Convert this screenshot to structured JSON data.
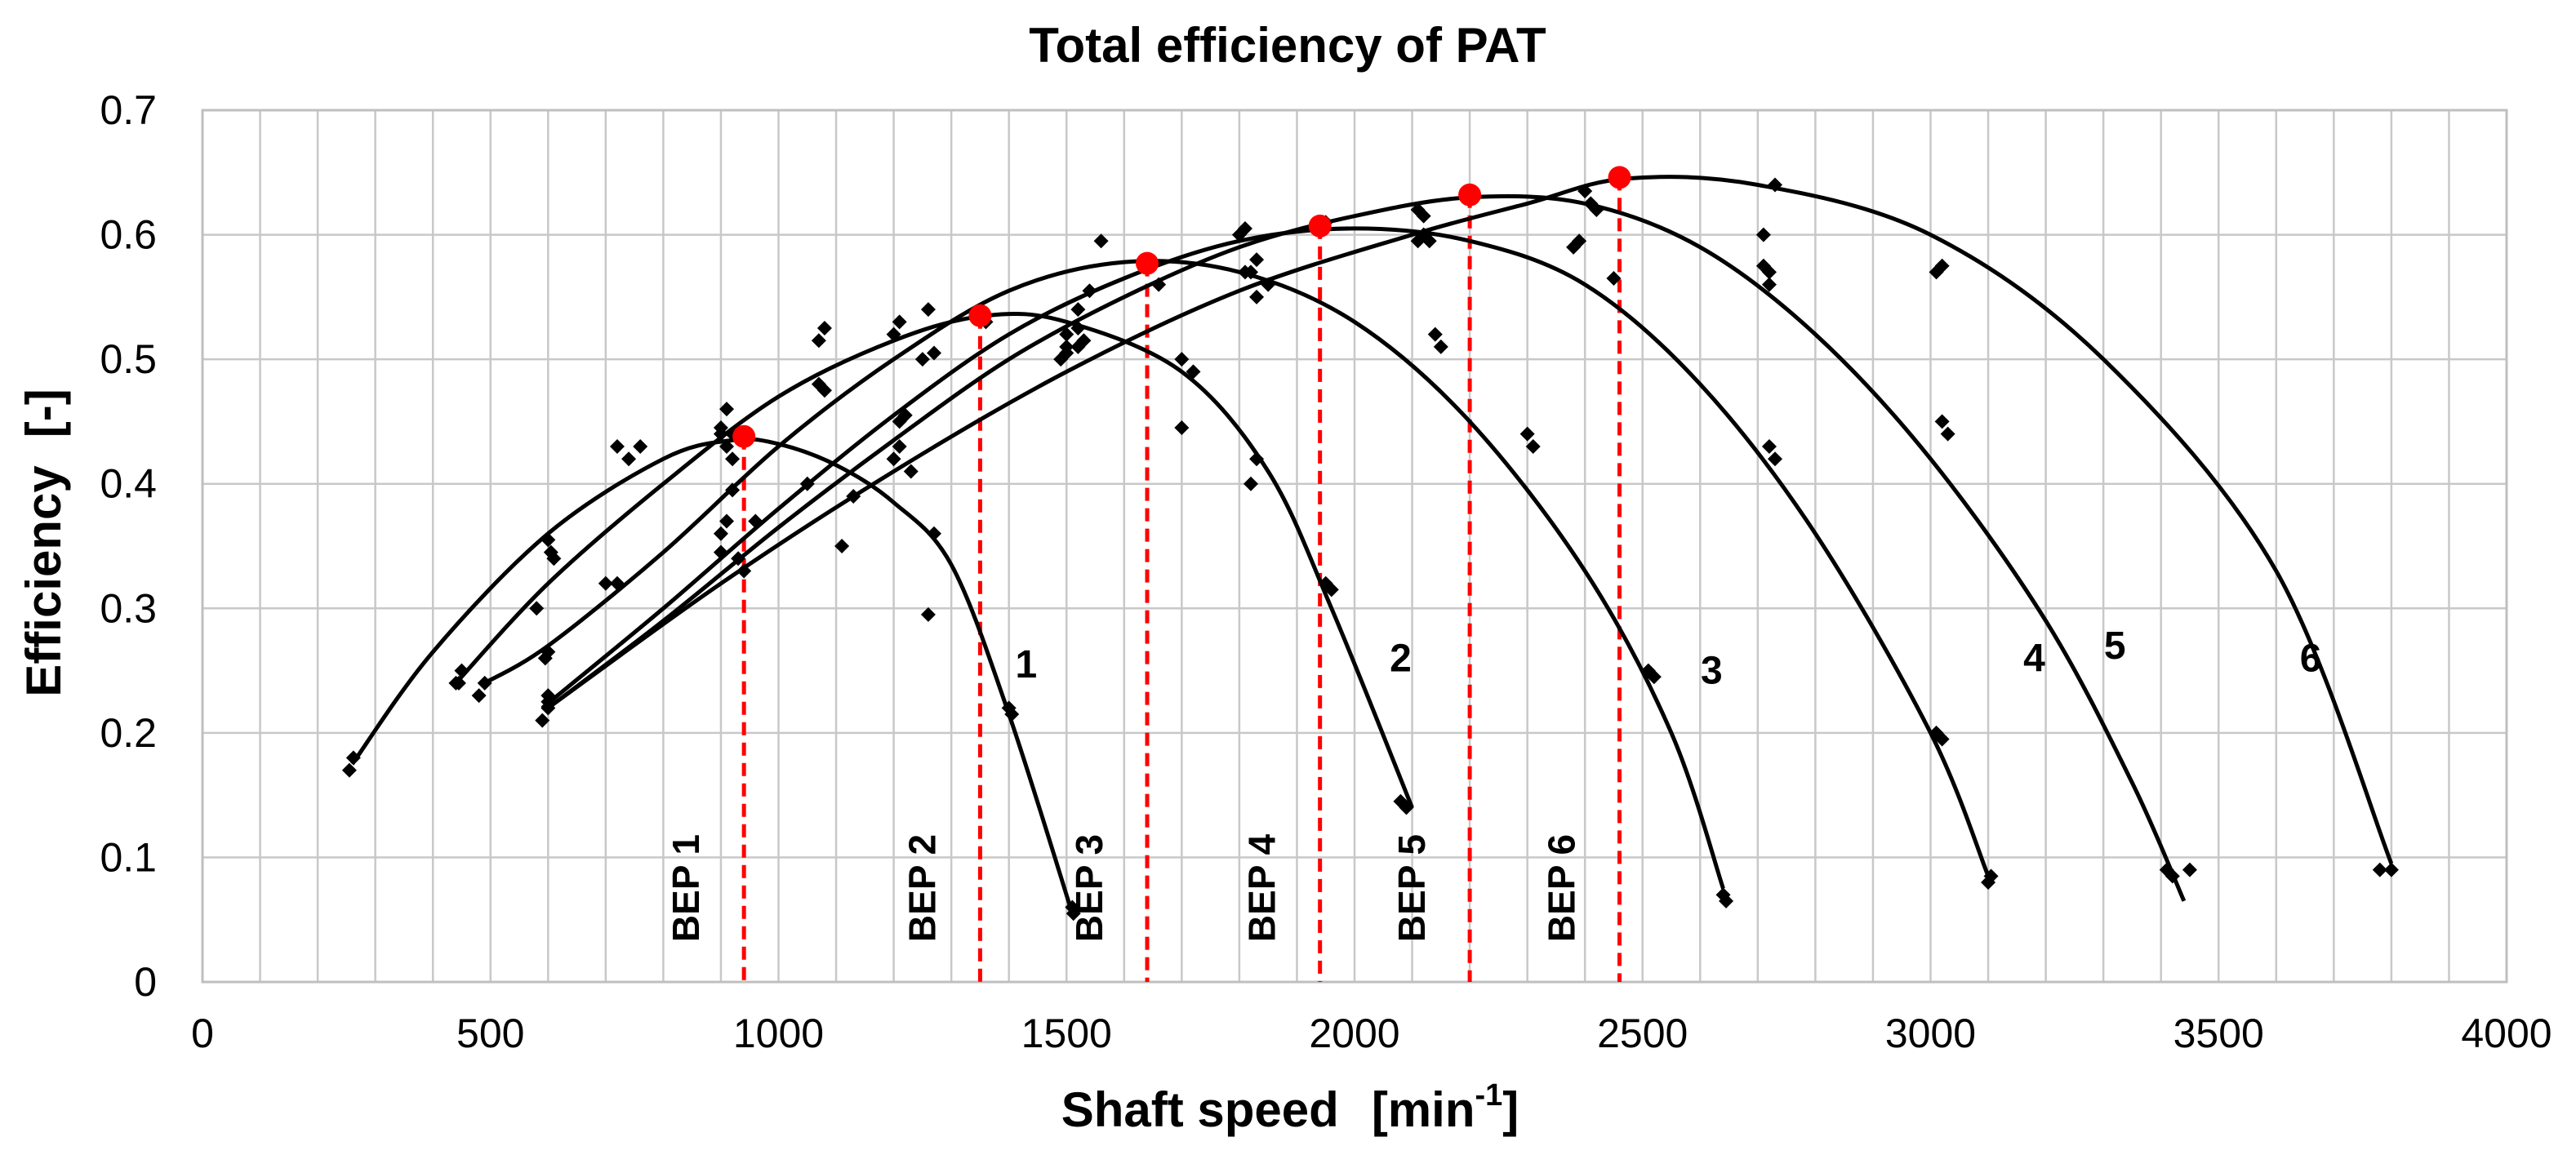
{
  "chart_data": {
    "type": "scatter",
    "title": "Total efficiency of PAT",
    "xlabel": "Shaft speed",
    "xlabel_unit_base": "[min",
    "xlabel_unit_exp": "-1",
    "xlabel_unit_close": "]",
    "ylabel": "Efficiency",
    "ylabel_unit": "[-]",
    "xlim": [
      0,
      4000
    ],
    "ylim": [
      0,
      0.7
    ],
    "x_ticks": [
      "0",
      "500",
      "1000",
      "1500",
      "2000",
      "2500",
      "3000",
      "3500",
      "4000"
    ],
    "y_ticks": [
      "0",
      "0.1",
      "0.2",
      "0.3",
      "0.4",
      "0.5",
      "0.6",
      "0.7"
    ],
    "grid": true,
    "colors": {
      "curve": "#000000",
      "points": "#000000",
      "bep": "#ff0000"
    },
    "series": [
      {
        "name": "1",
        "fit": [
          [
            260,
            0.175
          ],
          [
            400,
            0.265
          ],
          [
            600,
            0.36
          ],
          [
            800,
            0.42
          ],
          [
            920,
            0.435
          ],
          [
            1000,
            0.432
          ],
          [
            1100,
            0.415
          ],
          [
            1200,
            0.385
          ],
          [
            1300,
            0.335
          ],
          [
            1400,
            0.215
          ],
          [
            1510,
            0.055
          ]
        ],
        "points": [
          [
            255,
            0.17
          ],
          [
            262,
            0.18
          ],
          [
            440,
            0.24
          ],
          [
            450,
            0.25
          ],
          [
            600,
            0.355
          ],
          [
            605,
            0.345
          ],
          [
            610,
            0.34
          ],
          [
            720,
            0.43
          ],
          [
            740,
            0.42
          ],
          [
            760,
            0.43
          ],
          [
            900,
            0.445
          ],
          [
            910,
            0.43
          ],
          [
            920,
            0.44
          ],
          [
            1110,
            0.35
          ],
          [
            1130,
            0.39
          ],
          [
            1260,
            0.295
          ],
          [
            1270,
            0.36
          ],
          [
            1400,
            0.22
          ],
          [
            1405,
            0.215
          ],
          [
            1510,
            0.06
          ],
          [
            1512,
            0.055
          ]
        ],
        "label_at": [
          1430,
          0.255
        ]
      },
      {
        "name": "2",
        "fit": [
          [
            440,
            0.24
          ],
          [
            600,
            0.32
          ],
          [
            800,
            0.4
          ],
          [
            1000,
            0.47
          ],
          [
            1200,
            0.515
          ],
          [
            1360,
            0.535
          ],
          [
            1500,
            0.53
          ],
          [
            1700,
            0.49
          ],
          [
            1850,
            0.41
          ],
          [
            1960,
            0.3
          ],
          [
            2100,
            0.14
          ]
        ],
        "points": [
          [
            445,
            0.24
          ],
          [
            480,
            0.23
          ],
          [
            580,
            0.3
          ],
          [
            700,
            0.32
          ],
          [
            900,
            0.44
          ],
          [
            910,
            0.46
          ],
          [
            1070,
            0.515
          ],
          [
            1080,
            0.525
          ],
          [
            1200,
            0.52
          ],
          [
            1210,
            0.53
          ],
          [
            1260,
            0.54
          ],
          [
            1360,
            0.53
          ],
          [
            1540,
            0.555
          ],
          [
            1560,
            0.595
          ],
          [
            1700,
            0.5
          ],
          [
            1720,
            0.49
          ],
          [
            1820,
            0.4
          ],
          [
            1830,
            0.42
          ],
          [
            1950,
            0.32
          ],
          [
            1960,
            0.315
          ],
          [
            2080,
            0.145
          ],
          [
            2090,
            0.14
          ]
        ],
        "label_at": [
          2080,
          0.26
        ]
      },
      {
        "name": "3",
        "fit": [
          [
            490,
            0.24
          ],
          [
            600,
            0.27
          ],
          [
            800,
            0.345
          ],
          [
            1000,
            0.43
          ],
          [
            1200,
            0.5
          ],
          [
            1400,
            0.555
          ],
          [
            1600,
            0.578
          ],
          [
            1800,
            0.57
          ],
          [
            2000,
            0.53
          ],
          [
            2200,
            0.45
          ],
          [
            2400,
            0.33
          ],
          [
            2550,
            0.2
          ],
          [
            2640,
            0.075
          ]
        ],
        "points": [
          [
            490,
            0.24
          ],
          [
            595,
            0.26
          ],
          [
            600,
            0.265
          ],
          [
            720,
            0.32
          ],
          [
            900,
            0.36
          ],
          [
            920,
            0.395
          ],
          [
            1070,
            0.48
          ],
          [
            1080,
            0.475
          ],
          [
            1250,
            0.5
          ],
          [
            1270,
            0.505
          ],
          [
            1500,
            0.51
          ],
          [
            1520,
            0.54
          ],
          [
            1640,
            0.575
          ],
          [
            1700,
            0.445
          ],
          [
            1830,
            0.55
          ],
          [
            1850,
            0.56
          ],
          [
            2140,
            0.52
          ],
          [
            2150,
            0.51
          ],
          [
            2300,
            0.44
          ],
          [
            2310,
            0.43
          ],
          [
            2510,
            0.25
          ],
          [
            2520,
            0.245
          ],
          [
            2640,
            0.07
          ],
          [
            2645,
            0.065
          ]
        ],
        "label_at": [
          2620,
          0.25
        ]
      },
      {
        "name": "4",
        "fit": [
          [
            590,
            0.22
          ],
          [
            800,
            0.3
          ],
          [
            1000,
            0.38
          ],
          [
            1200,
            0.455
          ],
          [
            1400,
            0.52
          ],
          [
            1600,
            0.565
          ],
          [
            1800,
            0.595
          ],
          [
            2000,
            0.605
          ],
          [
            2200,
            0.595
          ],
          [
            2400,
            0.56
          ],
          [
            2600,
            0.48
          ],
          [
            2800,
            0.36
          ],
          [
            3000,
            0.2
          ],
          [
            3100,
            0.085
          ]
        ],
        "points": [
          [
            590,
            0.21
          ],
          [
            600,
            0.22
          ],
          [
            900,
            0.345
          ],
          [
            910,
            0.37
          ],
          [
            1050,
            0.4
          ],
          [
            1210,
            0.45
          ],
          [
            1220,
            0.455
          ],
          [
            1500,
            0.52
          ],
          [
            1520,
            0.525
          ],
          [
            1660,
            0.56
          ],
          [
            1810,
            0.57
          ],
          [
            1950,
            0.61
          ],
          [
            2110,
            0.595
          ],
          [
            2120,
            0.6
          ],
          [
            2380,
            0.59
          ],
          [
            2390,
            0.595
          ],
          [
            2450,
            0.565
          ],
          [
            2720,
            0.43
          ],
          [
            2730,
            0.42
          ],
          [
            3010,
            0.2
          ],
          [
            3020,
            0.195
          ],
          [
            3100,
            0.08
          ],
          [
            3105,
            0.085
          ]
        ],
        "label_at": [
          3180,
          0.26
        ]
      },
      {
        "name": "5",
        "fit": [
          [
            600,
            0.22
          ],
          [
            800,
            0.29
          ],
          [
            1000,
            0.365
          ],
          [
            1200,
            0.435
          ],
          [
            1400,
            0.5
          ],
          [
            1600,
            0.55
          ],
          [
            1800,
            0.59
          ],
          [
            2000,
            0.615
          ],
          [
            2200,
            0.63
          ],
          [
            2400,
            0.625
          ],
          [
            2600,
            0.59
          ],
          [
            2800,
            0.52
          ],
          [
            3000,
            0.42
          ],
          [
            3200,
            0.29
          ],
          [
            3350,
            0.16
          ],
          [
            3440,
            0.065
          ]
        ],
        "points": [
          [
            600,
            0.23
          ],
          [
            920,
            0.42
          ],
          [
            960,
            0.37
          ],
          [
            1200,
            0.42
          ],
          [
            1230,
            0.41
          ],
          [
            1490,
            0.5
          ],
          [
            1500,
            0.505
          ],
          [
            1800,
            0.6
          ],
          [
            1810,
            0.605
          ],
          [
            2110,
            0.62
          ],
          [
            2120,
            0.615
          ],
          [
            2400,
            0.635
          ],
          [
            2410,
            0.625
          ],
          [
            2710,
            0.575
          ],
          [
            2720,
            0.57
          ],
          [
            3020,
            0.45
          ],
          [
            3030,
            0.44
          ],
          [
            3410,
            0.09
          ],
          [
            3420,
            0.085
          ],
          [
            3450,
            0.09
          ]
        ],
        "label_at": [
          3320,
          0.27
        ]
      },
      {
        "name": "6",
        "fit": [
          [
            600,
            0.22
          ],
          [
            900,
            0.32
          ],
          [
            1200,
            0.41
          ],
          [
            1500,
            0.49
          ],
          [
            1800,
            0.555
          ],
          [
            2100,
            0.6
          ],
          [
            2300,
            0.625
          ],
          [
            2470,
            0.645
          ],
          [
            2700,
            0.64
          ],
          [
            3000,
            0.6
          ],
          [
            3300,
            0.5
          ],
          [
            3600,
            0.33
          ],
          [
            3800,
            0.095
          ]
        ],
        "points": [
          [
            600,
            0.225
          ],
          [
            930,
            0.34
          ],
          [
            940,
            0.33
          ],
          [
            1210,
            0.43
          ],
          [
            1520,
            0.51
          ],
          [
            1530,
            0.515
          ],
          [
            1820,
            0.57
          ],
          [
            1830,
            0.58
          ],
          [
            2120,
            0.6
          ],
          [
            2130,
            0.595
          ],
          [
            2420,
            0.62
          ],
          [
            2710,
            0.6
          ],
          [
            2720,
            0.56
          ],
          [
            2730,
            0.64
          ],
          [
            3010,
            0.57
          ],
          [
            3020,
            0.575
          ],
          [
            3780,
            0.09
          ],
          [
            3800,
            0.09
          ]
        ],
        "label_at": [
          3660,
          0.26
        ]
      }
    ],
    "bep": [
      {
        "label": "BEP 1",
        "x": 940,
        "y": 0.438
      },
      {
        "label": "BEP 2",
        "x": 1350,
        "y": 0.535
      },
      {
        "label": "BEP 3",
        "x": 1640,
        "y": 0.577
      },
      {
        "label": "BEP 4",
        "x": 1940,
        "y": 0.607
      },
      {
        "label": "BEP 5",
        "x": 2200,
        "y": 0.632
      },
      {
        "label": "BEP 6",
        "x": 2460,
        "y": 0.646
      }
    ]
  }
}
